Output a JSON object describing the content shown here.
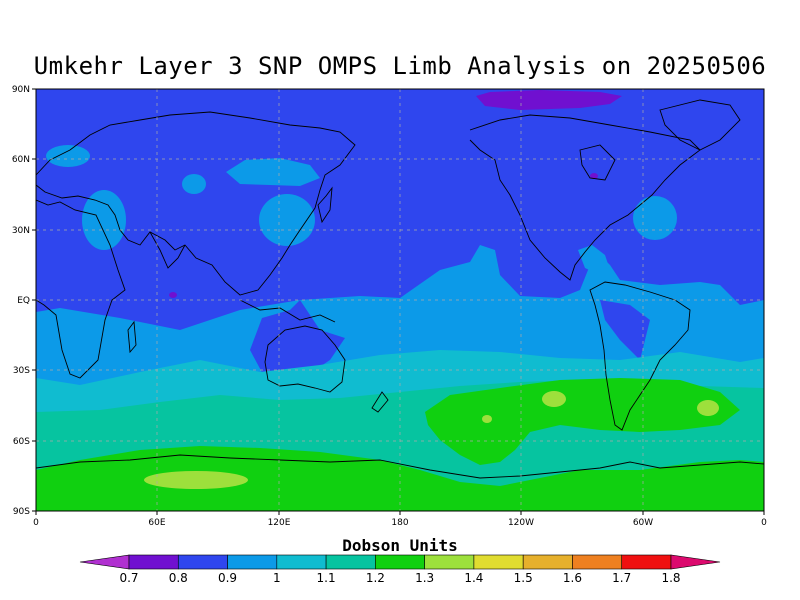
{
  "title": "Umkehr Layer 3 SNP OMPS Limb Analysis on 20250506",
  "lat_ticks": [
    "90N",
    "60N",
    "30N",
    "EQ",
    "30S",
    "60S",
    "90S"
  ],
  "lon_ticks": [
    "0",
    "60E",
    "120E",
    "180",
    "120W",
    "60W",
    "0"
  ],
  "colorbar": {
    "title": "Dobson Units",
    "labels": [
      "0.7",
      "0.8",
      "0.9",
      "1",
      "1.1",
      "1.2",
      "1.3",
      "1.4",
      "1.5",
      "1.6",
      "1.7",
      "1.8"
    ],
    "colors": [
      "#b030d0",
      "#7010d0",
      "#2f46ee",
      "#0c9ae8",
      "#10bcd0",
      "#06c4a0",
      "#10d010",
      "#9de03c",
      "#e0dc30",
      "#e6b02c",
      "#ee8020",
      "#f01010",
      "#dc0a6e"
    ]
  },
  "field_colors": {
    "purple": "#7010d0",
    "blue": "#2f46ee",
    "lightblue": "#0c9ae8",
    "cyan": "#10bcd0",
    "teal": "#06c4a0",
    "green": "#10d010",
    "lightgreen": "#9de03c"
  }
}
